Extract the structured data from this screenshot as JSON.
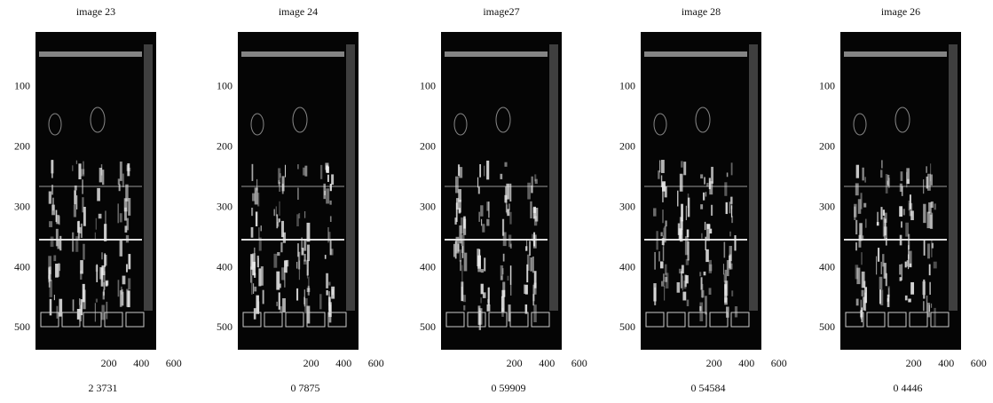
{
  "panels": [
    {
      "title": "image 23",
      "yticks": [
        100,
        200,
        300,
        400,
        500
      ],
      "xticks": [
        200,
        400,
        600
      ],
      "caption": "2 3731"
    },
    {
      "title": "image 24",
      "yticks": [
        100,
        200,
        300,
        400,
        500
      ],
      "xticks": [
        200,
        400,
        600
      ],
      "caption": "0 7875"
    },
    {
      "title": "image27",
      "yticks": [
        100,
        200,
        300,
        400,
        500
      ],
      "xticks": [
        200,
        400,
        600
      ],
      "caption": "0 59909"
    },
    {
      "title": "image 28",
      "yticks": [
        100,
        200,
        300,
        400,
        500
      ],
      "xticks": [
        200,
        400,
        600
      ],
      "caption": "0 54584"
    },
    {
      "title": "image 26",
      "yticks": [
        100,
        200,
        300,
        400,
        500
      ],
      "xticks": [
        200,
        400,
        600
      ],
      "caption": "0 4446"
    }
  ]
}
